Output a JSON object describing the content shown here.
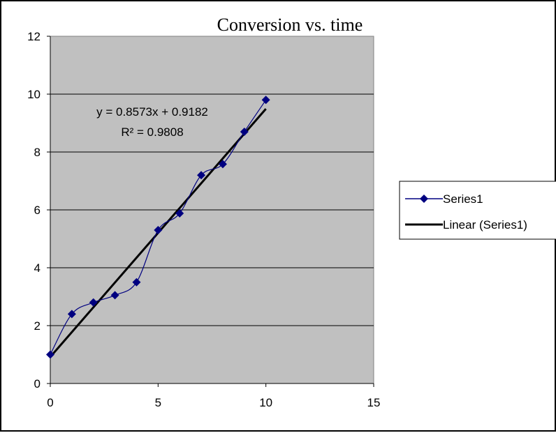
{
  "chart_data": {
    "type": "scatter",
    "title": "Conversion vs. time",
    "xlabel": "",
    "ylabel": "",
    "xlim": [
      0,
      15
    ],
    "ylim": [
      0,
      12
    ],
    "x_ticks": [
      "0",
      "5",
      "10",
      "15"
    ],
    "y_ticks": [
      "0",
      "2",
      "4",
      "6",
      "8",
      "10",
      "12"
    ],
    "grid": "horizontal",
    "plot_background": "#C0C0C0",
    "series": [
      {
        "name": "Series1",
        "style": "smoothed line with diamond markers",
        "color": "#000080",
        "x": [
          0,
          1,
          2,
          3,
          4,
          5,
          6,
          7,
          8,
          9,
          10
        ],
        "y": [
          1.0,
          2.4,
          2.8,
          3.05,
          3.5,
          5.3,
          5.88,
          7.2,
          7.58,
          8.7,
          9.8
        ]
      }
    ],
    "trendline": {
      "name": "Linear (Series1)",
      "type": "linear",
      "slope": 0.8573,
      "intercept": 0.9182,
      "x_range": [
        0,
        10
      ],
      "color": "#000000"
    },
    "annotations": {
      "equation": "y = 0.8573x + 0.9182",
      "r_squared": "R² = 0.9808"
    },
    "legend": {
      "placement": "right",
      "entries": [
        "Series1",
        "Linear (Series1)"
      ]
    }
  }
}
